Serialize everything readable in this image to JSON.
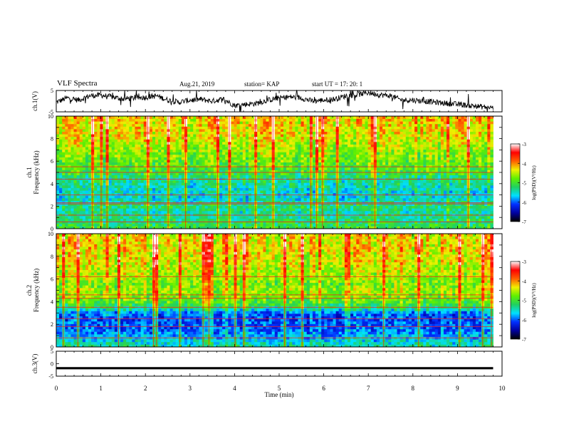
{
  "header": {
    "title": "VLF Spectra",
    "date": "Aug.21, 2019",
    "station": "station= KAP",
    "start": "start  UT =   17: 20: 1"
  },
  "colors": {
    "colorbar": [
      "#000000",
      "#0000a0",
      "#0030ff",
      "#00e0ff",
      "#20d060",
      "#60f000",
      "#f0f000",
      "#ff6000",
      "#ff0000",
      "#ffffff"
    ],
    "trace": "#000000"
  },
  "chart_data": [
    {
      "type": "line",
      "name": "ch1-waveform",
      "ylabel": "ch.1(V)",
      "ylim": [
        -5,
        5
      ],
      "yticks": [
        "5",
        "-5"
      ],
      "x": [
        0,
        0.25,
        0.5,
        0.75,
        1.0,
        1.25,
        1.5,
        1.75,
        2.0,
        2.25,
        2.5,
        2.75,
        3.0,
        3.25,
        3.5,
        3.75,
        4.0,
        4.25,
        4.5,
        4.75,
        5.0,
        5.25,
        5.5,
        5.75,
        6.0,
        6.25,
        6.5,
        6.75,
        7.0,
        7.25,
        7.5,
        7.75,
        8.0,
        8.25,
        8.5,
        8.75,
        9.0,
        9.25,
        9.5,
        9.75,
        9.8
      ],
      "y": [
        -0.5,
        1.5,
        0.5,
        2.5,
        2.8,
        2.0,
        1.0,
        1.5,
        1.8,
        2.5,
        0.5,
        -0.5,
        0.5,
        0.8,
        0.0,
        1.0,
        -2.0,
        -1.5,
        -1.0,
        0.5,
        1.5,
        2.0,
        1.5,
        0.0,
        0.5,
        1.0,
        2.5,
        3.0,
        4.0,
        3.0,
        2.5,
        0.5,
        0.5,
        0.0,
        -0.5,
        -1.0,
        -1.5,
        -2.0,
        -2.5,
        -3.0,
        -3.0
      ]
    },
    {
      "type": "heatmap",
      "name": "ch1-spectrogram",
      "ylabel": "ch.1\nFrequency (kHz)",
      "ylim": [
        0,
        10
      ],
      "yticks": [
        "0",
        "2",
        "4",
        "6",
        "8",
        "10"
      ],
      "colorbar_label": "log(PSD)(V²/Hz)",
      "colorbar_range": [
        -7,
        -3
      ],
      "colorbar_ticks": [
        "-3",
        "-4",
        "-5",
        "-6",
        "-7"
      ],
      "freq_khz": [
        0,
        0.5,
        1,
        1.5,
        2,
        2.5,
        3,
        3.5,
        4,
        4.5,
        5,
        5.5,
        6,
        6.5,
        7,
        7.5,
        8,
        8.5,
        9,
        9.5,
        10
      ],
      "level_profile": [
        -5.0,
        -5.2,
        -5.3,
        -5.4,
        -5.2,
        -5.5,
        -5.6,
        -5.5,
        -5.4,
        -5.3,
        -5.0,
        -4.9,
        -4.8,
        -4.7,
        -4.6,
        -4.5,
        -4.4,
        -4.3,
        -4.3,
        -4.2,
        -4.2
      ],
      "hum_lines_khz": [
        0.6,
        1.2,
        2.2,
        2.3,
        3.0,
        4.4,
        5.0,
        5.5
      ]
    },
    {
      "type": "heatmap",
      "name": "ch2-spectrogram",
      "ylabel": "ch.2\nFrequency (kHz)",
      "ylim": [
        0,
        10
      ],
      "yticks": [
        "0",
        "2",
        "4",
        "6",
        "8",
        "10"
      ],
      "colorbar_label": "log(PSD)(V²/Hz)",
      "colorbar_range": [
        -7,
        -3
      ],
      "colorbar_ticks": [
        "-3",
        "-4",
        "-5",
        "-6",
        "-7"
      ],
      "freq_khz": [
        0,
        0.5,
        1,
        1.5,
        2,
        2.5,
        3,
        3.5,
        4,
        4.5,
        5,
        5.5,
        6,
        6.5,
        7,
        7.5,
        8,
        8.5,
        9,
        9.5,
        10
      ],
      "level_profile": [
        -5.4,
        -5.6,
        -5.8,
        -6.0,
        -6.0,
        -6.1,
        -6.0,
        -5.3,
        -4.9,
        -4.7,
        -4.6,
        -4.8,
        -4.6,
        -4.5,
        -4.5,
        -4.4,
        -4.4,
        -4.3,
        -4.3,
        -4.3,
        -4.3
      ],
      "hum_lines_khz": [
        0.8,
        1.8,
        2.5,
        3.5,
        4.3,
        4.6,
        6.2
      ]
    },
    {
      "type": "line",
      "name": "ch3-waveform",
      "ylabel": "ch.3(V)",
      "xlabel": "Time (min)",
      "xlim": [
        0,
        10
      ],
      "xticks": [
        "0",
        "1",
        "2",
        "3",
        "4",
        "5",
        "6",
        "7",
        "8",
        "9",
        "10"
      ],
      "ylim": [
        -5,
        5
      ],
      "yticks": [
        "5",
        "0",
        "-5"
      ],
      "x": [
        0,
        9.8
      ],
      "y": [
        -1.8,
        -1.8
      ]
    }
  ]
}
